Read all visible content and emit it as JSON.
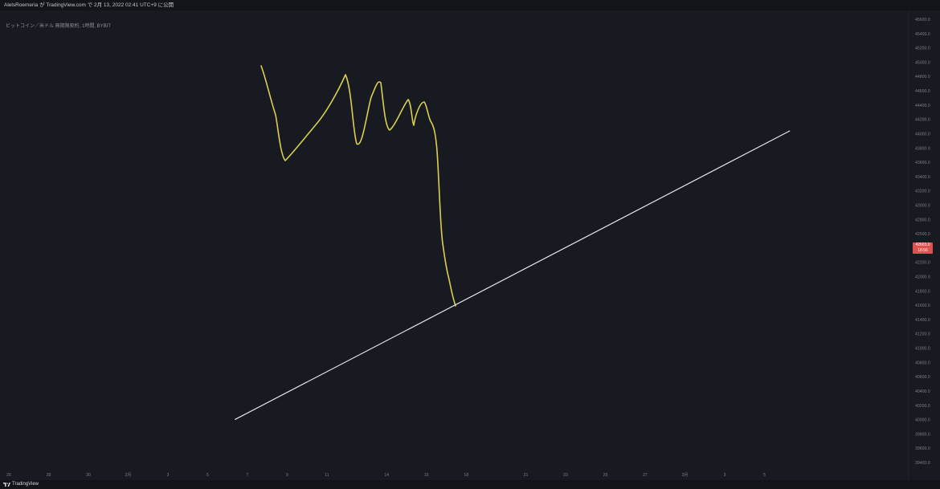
{
  "header": {
    "caption": "AlelsRoemeria が TradingView.com で 2月 13, 2022 02:41 UTC+9 に公開"
  },
  "symbol_info": "ビットコイン／米ドル 無期限契約, 1時間, BYBIT",
  "footer": {
    "brand": "TradingView",
    "logo_icon": "tradingview-logo-icon"
  },
  "colors": {
    "background": "#181a22",
    "price_line": "#d9cf4f",
    "trendline": "#e6e6ea",
    "axis_text": "#7b7e87",
    "price_tag": "#e0504e"
  },
  "chart_data": {
    "type": "line",
    "title": "",
    "xlabel": "",
    "ylabel": "",
    "ylim": [
      39400,
      45600
    ],
    "x_tick_labels": [
      "26",
      "28",
      "30",
      "2月",
      "3",
      "5",
      "7",
      "9",
      "11",
      "14",
      "16",
      "18",
      "21",
      "23",
      "25",
      "27",
      "3月",
      "3",
      "5"
    ],
    "y_ticks": [
      45600,
      45400,
      45200,
      45000,
      44800,
      44600,
      44400,
      44200,
      44000,
      43800,
      43600,
      43400,
      43200,
      43000,
      42800,
      42600,
      42400,
      42200,
      42000,
      41800,
      41600,
      41400,
      41200,
      41000,
      40800,
      40600,
      40400,
      40200,
      40000,
      39800,
      39600,
      39400
    ],
    "current_price": {
      "label": "42603.0",
      "sublabel": "18:56",
      "value": 42603
    },
    "series": [
      {
        "type": "freehand",
        "points": [
          {
            "date": "2022-02-08",
            "price": 45000
          },
          {
            "date": "2022-02-08",
            "price": 44500
          },
          {
            "date": "2022-02-09",
            "price": 43670
          },
          {
            "date": "2022-02-10",
            "price": 44150
          },
          {
            "date": "2022-02-12",
            "price": 44850
          },
          {
            "date": "2022-02-13",
            "price": 43870
          },
          {
            "date": "2022-02-13",
            "price": 44750
          },
          {
            "date": "2022-02-14",
            "price": 44100
          },
          {
            "date": "2022-02-15",
            "price": 44500
          },
          {
            "date": "2022-02-15",
            "price": 44150
          },
          {
            "date": "2022-02-16",
            "price": 44480
          },
          {
            "date": "2022-02-16",
            "price": 44100
          },
          {
            "date": "2022-02-17",
            "price": 42300
          },
          {
            "date": "2022-02-17",
            "price": 41600
          }
        ]
      },
      {
        "type": "trendline",
        "points": [
          {
            "date": "2022-02-06",
            "price": 40000
          },
          {
            "date": "2022-03-06",
            "price": 44040
          }
        ]
      }
    ]
  }
}
